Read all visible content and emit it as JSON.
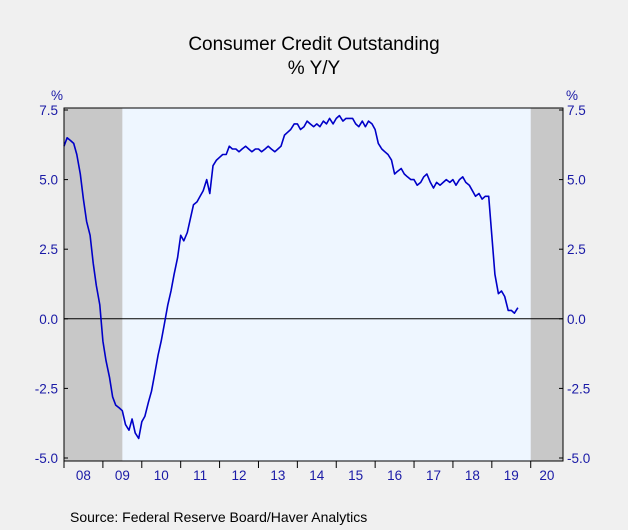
{
  "chart_data": {
    "type": "line",
    "title": "Consumer Credit Outstanding",
    "subtitle": "% Y/Y",
    "ylabel_left": "%",
    "ylabel_right": "%",
    "source": "Source:  Federal Reserve Board/Haver Analytics",
    "ylim": [
      -5.25,
      7.5
    ],
    "yticks": [
      -5.0,
      -2.5,
      0.0,
      2.5,
      5.0,
      7.5
    ],
    "ytick_labels": [
      "-5.0",
      "-2.5",
      "0.0",
      "2.5",
      "5.0",
      "7.5"
    ],
    "xlim": [
      2008.0,
      2020.83
    ],
    "xtick_labels": [
      "08",
      "09",
      "10",
      "11",
      "12",
      "13",
      "14",
      "15",
      "16",
      "17",
      "18",
      "19",
      "20"
    ],
    "recessions": [
      [
        2008.0,
        2009.5
      ],
      [
        2020.0,
        2020.83
      ]
    ],
    "colors": {
      "line": "#0000c8",
      "recession": "#c8c8c8",
      "plot_bg": "#eef6ff",
      "zero_line": "#000000",
      "tick_text": "#1a1aa6"
    },
    "series": [
      {
        "values": [
          {
            "x": 2008.0,
            "y": 6.2
          },
          {
            "x": 2008.08,
            "y": 6.5
          },
          {
            "x": 2008.17,
            "y": 6.4
          },
          {
            "x": 2008.25,
            "y": 6.3
          },
          {
            "x": 2008.33,
            "y": 5.9
          },
          {
            "x": 2008.42,
            "y": 5.2
          },
          {
            "x": 2008.5,
            "y": 4.3
          },
          {
            "x": 2008.58,
            "y": 3.5
          },
          {
            "x": 2008.67,
            "y": 3.0
          },
          {
            "x": 2008.75,
            "y": 2.0
          },
          {
            "x": 2008.83,
            "y": 1.2
          },
          {
            "x": 2008.92,
            "y": 0.5
          },
          {
            "x": 2009.0,
            "y": -0.8
          },
          {
            "x": 2009.08,
            "y": -1.5
          },
          {
            "x": 2009.17,
            "y": -2.1
          },
          {
            "x": 2009.25,
            "y": -2.8
          },
          {
            "x": 2009.33,
            "y": -3.1
          },
          {
            "x": 2009.42,
            "y": -3.2
          },
          {
            "x": 2009.5,
            "y": -3.3
          },
          {
            "x": 2009.58,
            "y": -3.8
          },
          {
            "x": 2009.67,
            "y": -4.0
          },
          {
            "x": 2009.75,
            "y": -3.6
          },
          {
            "x": 2009.83,
            "y": -4.1
          },
          {
            "x": 2009.92,
            "y": -4.3
          },
          {
            "x": 2010.0,
            "y": -3.7
          },
          {
            "x": 2010.08,
            "y": -3.5
          },
          {
            "x": 2010.17,
            "y": -3.0
          },
          {
            "x": 2010.25,
            "y": -2.6
          },
          {
            "x": 2010.33,
            "y": -2.0
          },
          {
            "x": 2010.42,
            "y": -1.3
          },
          {
            "x": 2010.5,
            "y": -0.8
          },
          {
            "x": 2010.58,
            "y": -0.2
          },
          {
            "x": 2010.67,
            "y": 0.5
          },
          {
            "x": 2010.75,
            "y": 1.0
          },
          {
            "x": 2010.83,
            "y": 1.6
          },
          {
            "x": 2010.92,
            "y": 2.2
          },
          {
            "x": 2011.0,
            "y": 3.0
          },
          {
            "x": 2011.08,
            "y": 2.8
          },
          {
            "x": 2011.17,
            "y": 3.1
          },
          {
            "x": 2011.25,
            "y": 3.6
          },
          {
            "x": 2011.33,
            "y": 4.1
          },
          {
            "x": 2011.42,
            "y": 4.2
          },
          {
            "x": 2011.5,
            "y": 4.4
          },
          {
            "x": 2011.58,
            "y": 4.6
          },
          {
            "x": 2011.67,
            "y": 5.0
          },
          {
            "x": 2011.75,
            "y": 4.5
          },
          {
            "x": 2011.83,
            "y": 5.5
          },
          {
            "x": 2011.92,
            "y": 5.7
          },
          {
            "x": 2012.0,
            "y": 5.8
          },
          {
            "x": 2012.08,
            "y": 5.9
          },
          {
            "x": 2012.17,
            "y": 5.9
          },
          {
            "x": 2012.25,
            "y": 6.2
          },
          {
            "x": 2012.33,
            "y": 6.1
          },
          {
            "x": 2012.42,
            "y": 6.1
          },
          {
            "x": 2012.5,
            "y": 6.0
          },
          {
            "x": 2012.58,
            "y": 6.1
          },
          {
            "x": 2012.67,
            "y": 6.2
          },
          {
            "x": 2012.75,
            "y": 6.1
          },
          {
            "x": 2012.83,
            "y": 6.0
          },
          {
            "x": 2012.92,
            "y": 6.1
          },
          {
            "x": 2013.0,
            "y": 6.1
          },
          {
            "x": 2013.08,
            "y": 6.0
          },
          {
            "x": 2013.17,
            "y": 6.1
          },
          {
            "x": 2013.25,
            "y": 6.2
          },
          {
            "x": 2013.33,
            "y": 6.1
          },
          {
            "x": 2013.42,
            "y": 6.0
          },
          {
            "x": 2013.5,
            "y": 6.1
          },
          {
            "x": 2013.58,
            "y": 6.2
          },
          {
            "x": 2013.67,
            "y": 6.6
          },
          {
            "x": 2013.75,
            "y": 6.7
          },
          {
            "x": 2013.83,
            "y": 6.8
          },
          {
            "x": 2013.92,
            "y": 7.0
          },
          {
            "x": 2014.0,
            "y": 7.0
          },
          {
            "x": 2014.08,
            "y": 6.8
          },
          {
            "x": 2014.17,
            "y": 6.9
          },
          {
            "x": 2014.25,
            "y": 7.1
          },
          {
            "x": 2014.33,
            "y": 7.0
          },
          {
            "x": 2014.42,
            "y": 6.9
          },
          {
            "x": 2014.5,
            "y": 7.0
          },
          {
            "x": 2014.58,
            "y": 6.9
          },
          {
            "x": 2014.67,
            "y": 7.1
          },
          {
            "x": 2014.75,
            "y": 7.0
          },
          {
            "x": 2014.83,
            "y": 7.2
          },
          {
            "x": 2014.92,
            "y": 7.0
          },
          {
            "x": 2015.0,
            "y": 7.2
          },
          {
            "x": 2015.08,
            "y": 7.3
          },
          {
            "x": 2015.17,
            "y": 7.1
          },
          {
            "x": 2015.25,
            "y": 7.2
          },
          {
            "x": 2015.33,
            "y": 7.2
          },
          {
            "x": 2015.42,
            "y": 7.2
          },
          {
            "x": 2015.5,
            "y": 7.0
          },
          {
            "x": 2015.58,
            "y": 6.9
          },
          {
            "x": 2015.67,
            "y": 7.1
          },
          {
            "x": 2015.75,
            "y": 6.9
          },
          {
            "x": 2015.83,
            "y": 7.1
          },
          {
            "x": 2015.92,
            "y": 7.0
          },
          {
            "x": 2016.0,
            "y": 6.8
          },
          {
            "x": 2016.08,
            "y": 6.3
          },
          {
            "x": 2016.17,
            "y": 6.1
          },
          {
            "x": 2016.25,
            "y": 6.0
          },
          {
            "x": 2016.33,
            "y": 5.9
          },
          {
            "x": 2016.42,
            "y": 5.7
          },
          {
            "x": 2016.5,
            "y": 5.2
          },
          {
            "x": 2016.58,
            "y": 5.3
          },
          {
            "x": 2016.67,
            "y": 5.4
          },
          {
            "x": 2016.75,
            "y": 5.2
          },
          {
            "x": 2016.83,
            "y": 5.1
          },
          {
            "x": 2016.92,
            "y": 5.0
          },
          {
            "x": 2017.0,
            "y": 5.0
          },
          {
            "x": 2017.08,
            "y": 4.8
          },
          {
            "x": 2017.17,
            "y": 4.9
          },
          {
            "x": 2017.25,
            "y": 5.1
          },
          {
            "x": 2017.33,
            "y": 5.2
          },
          {
            "x": 2017.42,
            "y": 4.9
          },
          {
            "x": 2017.5,
            "y": 4.7
          },
          {
            "x": 2017.58,
            "y": 4.9
          },
          {
            "x": 2017.67,
            "y": 4.8
          },
          {
            "x": 2017.75,
            "y": 4.9
          },
          {
            "x": 2017.83,
            "y": 5.0
          },
          {
            "x": 2017.92,
            "y": 4.9
          },
          {
            "x": 2018.0,
            "y": 5.0
          },
          {
            "x": 2018.08,
            "y": 4.8
          },
          {
            "x": 2018.17,
            "y": 5.0
          },
          {
            "x": 2018.25,
            "y": 5.1
          },
          {
            "x": 2018.33,
            "y": 4.9
          },
          {
            "x": 2018.42,
            "y": 4.8
          },
          {
            "x": 2018.5,
            "y": 4.6
          },
          {
            "x": 2018.58,
            "y": 4.4
          },
          {
            "x": 2018.67,
            "y": 4.5
          },
          {
            "x": 2018.75,
            "y": 4.3
          },
          {
            "x": 2018.83,
            "y": 4.4
          },
          {
            "x": 2018.92,
            "y": 4.4
          },
          {
            "x": 2019.0,
            "y": 3.0
          },
          {
            "x": 2019.08,
            "y": 1.6
          },
          {
            "x": 2019.17,
            "y": 0.9
          },
          {
            "x": 2019.25,
            "y": 1.0
          },
          {
            "x": 2019.33,
            "y": 0.8
          },
          {
            "x": 2019.42,
            "y": 0.3
          },
          {
            "x": 2019.5,
            "y": 0.3
          },
          {
            "x": 2019.58,
            "y": 0.2
          },
          {
            "x": 2019.67,
            "y": 0.4
          }
        ]
      }
    ]
  }
}
